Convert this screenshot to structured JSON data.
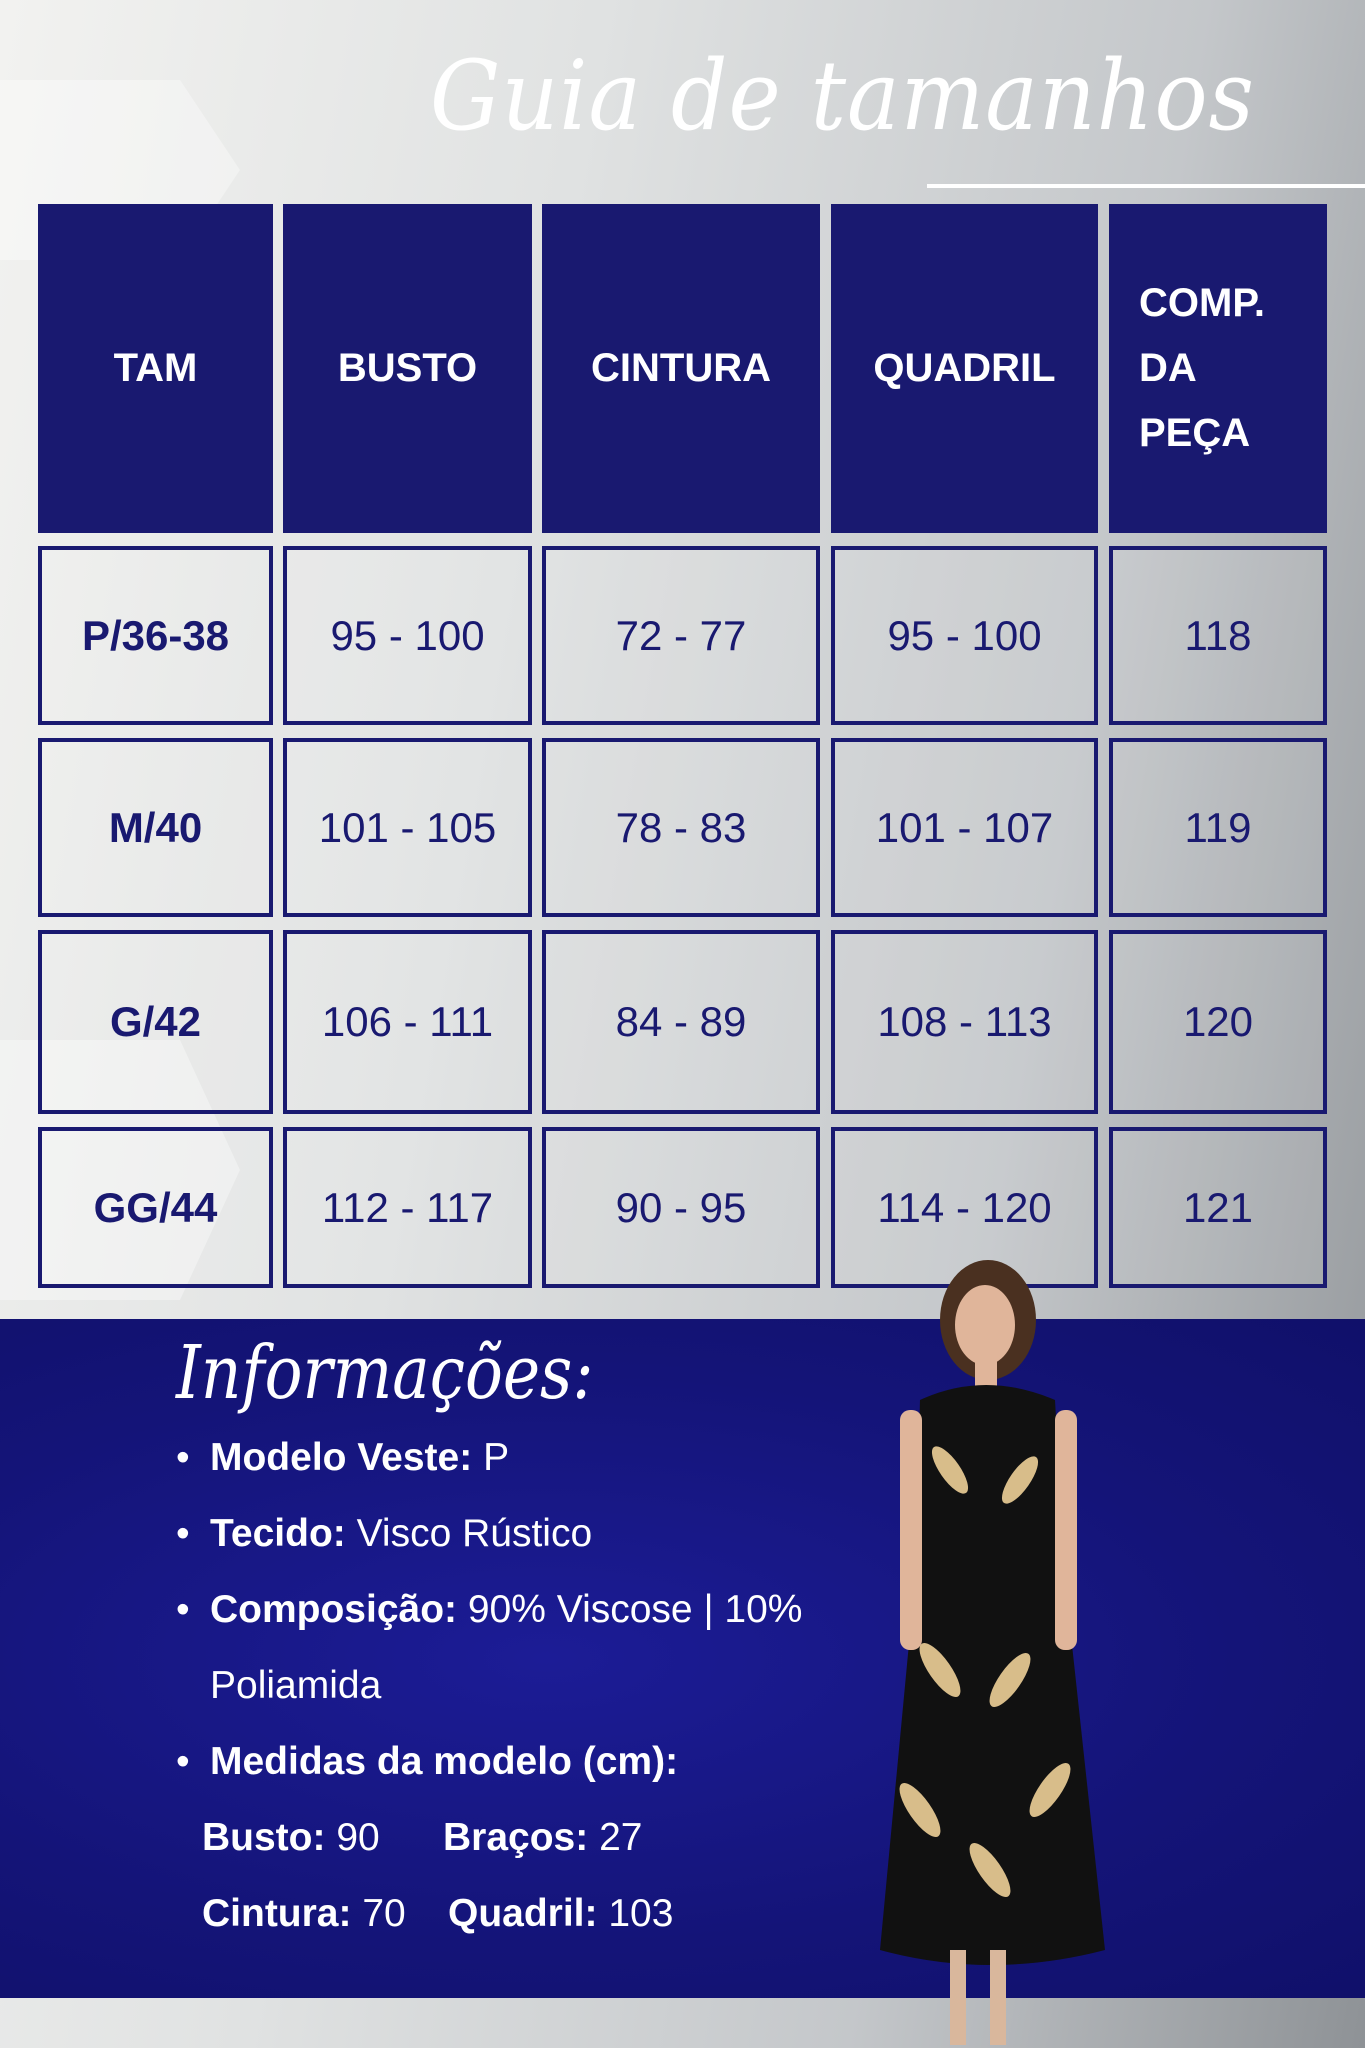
{
  "title": "Guia de tamanhos",
  "table": {
    "headers": [
      "TAM",
      "BUSTO",
      "CINTURA",
      "QUADRIL",
      "COMP.\nDA\nPEÇA"
    ],
    "rows": [
      [
        "P/36-38",
        "95 - 100",
        "72 - 77",
        "95 - 100",
        "118"
      ],
      [
        "M/40",
        "101 - 105",
        "78 - 83",
        "101 - 107",
        "119"
      ],
      [
        "G/42",
        "106 - 111",
        "84 - 89",
        "108 - 113",
        "120"
      ],
      [
        "GG/44",
        "112 - 117",
        "90 - 95",
        "114 - 120",
        "121"
      ]
    ]
  },
  "info": {
    "title": "Informações:",
    "modelo_label": "Modelo Veste:",
    "modelo_value": " P",
    "tecido_label": "Tecido:",
    "tecido_value": " Visco Rústico",
    "composicao_label": "Composição:",
    "composicao_value": " 90% Viscose | 10%",
    "composicao_cont": "Poliamida",
    "medidas_label": "Medidas da modelo (cm):",
    "busto_label": "Busto:",
    "busto_value": " 90",
    "bracos_label": "Braços:",
    "bracos_value": " 27",
    "cintura_label": "Cintura:",
    "cintura_value": " 70",
    "quadril_label": "Quadril:",
    "quadril_value": " 103"
  },
  "colors": {
    "navy": "#191970",
    "info_bg": "#141478"
  }
}
